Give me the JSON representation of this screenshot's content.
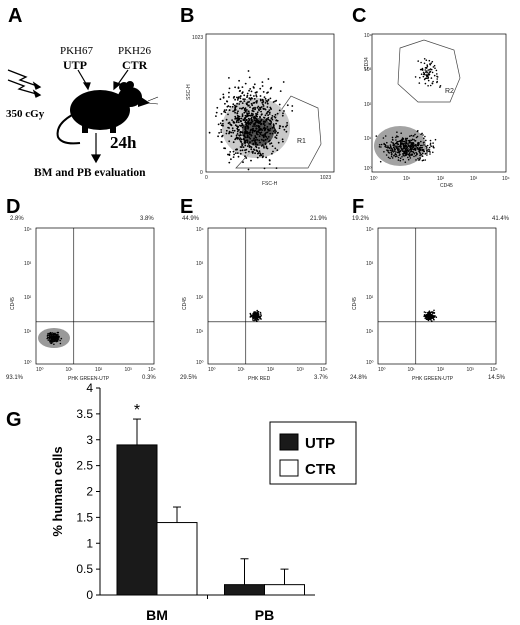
{
  "panels": {
    "A": {
      "letter": "A",
      "dose": "350 cGy",
      "dye_utp": "PKH67",
      "label_utp": "UTP",
      "dye_ctr": "PKH26",
      "label_ctr": "CTR",
      "time": "24h",
      "evaluation": "BM and PB evaluation"
    },
    "B": {
      "letter": "B",
      "xlabel": "FSC-H",
      "ylabel": "SSC-H",
      "x_ticks": [
        "0",
        "1023"
      ],
      "y_ticks": [
        "0",
        "1023"
      ],
      "gate": "R1"
    },
    "C": {
      "letter": "C",
      "xlabel": "CD45",
      "ylabel": "CD34",
      "x_ticks": [
        "10⁰",
        "10¹",
        "10²",
        "10³",
        "10⁴"
      ],
      "y_ticks": [
        "10⁰",
        "10¹",
        "10²",
        "10³",
        "10⁴"
      ],
      "gate": "R2"
    },
    "D": {
      "letter": "D",
      "xlabel": "PHK GREEN-UTP",
      "ylabel": "CD45",
      "x_ticks": [
        "10⁰",
        "10¹",
        "10²",
        "10³",
        "10⁴"
      ],
      "y_ticks": [
        "10⁰",
        "10¹",
        "10²",
        "10³",
        "10⁴"
      ],
      "q_ul": "2.8%",
      "q_ur": "3.8%",
      "q_ll": "93.1%",
      "q_lr": "0.3%"
    },
    "E": {
      "letter": "E",
      "xlabel": "PHK RED",
      "ylabel": "CD45",
      "x_ticks": [
        "10⁰",
        "10¹",
        "10²",
        "10³",
        "10⁴"
      ],
      "y_ticks": [
        "10⁰",
        "10¹",
        "10²",
        "10³",
        "10⁴"
      ],
      "q_ul": "44.9%",
      "q_ur": "21.9%",
      "q_ll": "29.5%",
      "q_lr": "3.7%"
    },
    "F": {
      "letter": "F",
      "xlabel": "PHK GREEN-UTP",
      "ylabel": "CD45",
      "x_ticks": [
        "10⁰",
        "10¹",
        "10²",
        "10³",
        "10⁴"
      ],
      "y_ticks": [
        "10⁰",
        "10¹",
        "10²",
        "10³",
        "10⁴"
      ],
      "q_ul": "19.2%",
      "q_ur": "41.4%",
      "q_ll": "24.8%",
      "q_lr": "14.5%"
    },
    "G": {
      "letter": "G"
    }
  },
  "chart_data": {
    "type": "bar",
    "categories": [
      "BM",
      "PB"
    ],
    "series": [
      {
        "name": "UTP",
        "values": [
          2.9,
          0.2
        ],
        "errors": [
          0.5,
          0.5
        ],
        "color": "#1a1a1a"
      },
      {
        "name": "CTR",
        "values": [
          1.4,
          0.2
        ],
        "errors": [
          0.3,
          0.3
        ],
        "color": "#ffffff"
      }
    ],
    "ylabel": "% human cells",
    "ylim": [
      0,
      4
    ],
    "yticks": [
      "0",
      "0.5",
      "1",
      "1.5",
      "2",
      "2.5",
      "3",
      "3.5",
      "4"
    ],
    "annotation": "*",
    "legend_position": "top-right"
  }
}
